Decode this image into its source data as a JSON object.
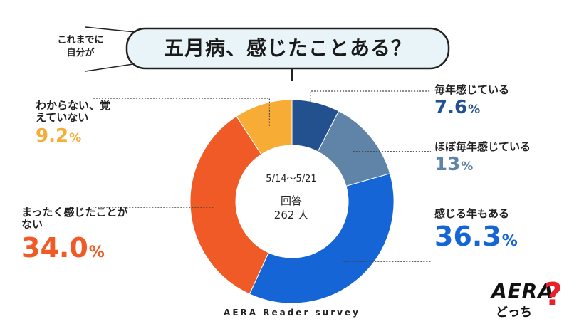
{
  "bubble": {
    "left_text_line1": "これまでに",
    "left_text_line2": "自分が",
    "title": "五月病、感じたことある？"
  },
  "center": {
    "date_range": "5/14～5/21",
    "respondents_label": "回答",
    "respondents_count": "262 人"
  },
  "footer": "AERA Reader survey",
  "logo": {
    "brand": "AERA",
    "sub": "どっち",
    "mark": "?"
  },
  "colors": {
    "every_year": "#23518f",
    "almost_every_year": "#5f84a8",
    "some_years": "#1565d6",
    "never": "#ef5a26",
    "dont_know": "#f6ac35",
    "bubble_fill": "#e9f4f8",
    "logo_accent": "#e8202a"
  },
  "chart_data": {
    "type": "pie",
    "style": "donut",
    "title": "五月病、感じたことある？",
    "series": [
      {
        "name": "毎年感じている",
        "value": 7.6,
        "label": "7.6",
        "unit": "%",
        "color": "#23518f"
      },
      {
        "name": "ほぼ毎年感じている",
        "value": 13,
        "label": "13",
        "unit": "%",
        "color": "#5f84a8"
      },
      {
        "name": "感じる年もある",
        "value": 36.3,
        "label": "36.3",
        "unit": "%",
        "color": "#1565d6"
      },
      {
        "name": "まったく感じたことがない",
        "value": 34.0,
        "label": "34.0",
        "unit": "%",
        "color": "#ef5a26"
      },
      {
        "name": "わからない、覚えていない",
        "value": 9.2,
        "label": "9.2",
        "unit": "%",
        "color": "#f6ac35"
      }
    ]
  }
}
